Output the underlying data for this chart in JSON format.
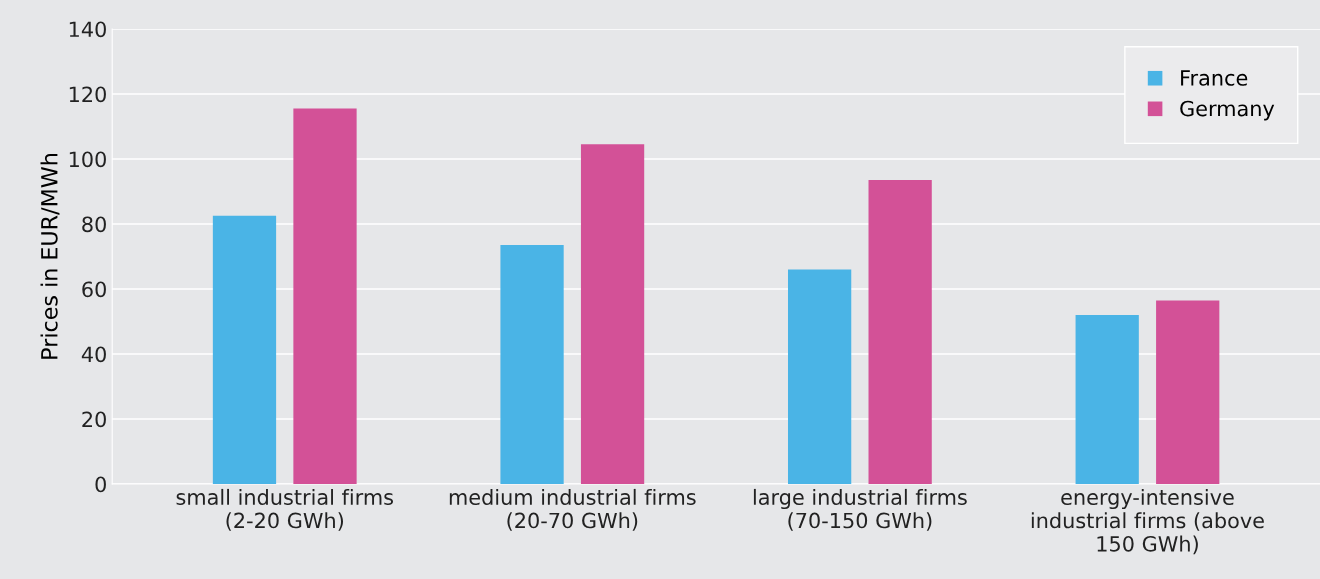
{
  "chart_data": {
    "type": "bar",
    "ylabel": "Prices in EUR/MWh",
    "categories": [
      "small industrial firms\n(2-20 GWh)",
      "medium industrial firms\n(20-70 GWh)",
      "large industrial firms\n(70-150 GWh)",
      "energy-intensive\nindustrial firms (above\n150 GWh)"
    ],
    "series": [
      {
        "name": "France",
        "color": "#4ab4e6",
        "values": [
          82.5,
          73.5,
          66,
          52
        ]
      },
      {
        "name": "Germany",
        "color": "#d35197",
        "values": [
          115.5,
          104.5,
          93.5,
          56.5
        ]
      }
    ],
    "ylim": [
      0,
      140
    ],
    "yticks": [
      0,
      20,
      40,
      60,
      80,
      100,
      120,
      140
    ],
    "grid": "y",
    "legend": "top right"
  }
}
